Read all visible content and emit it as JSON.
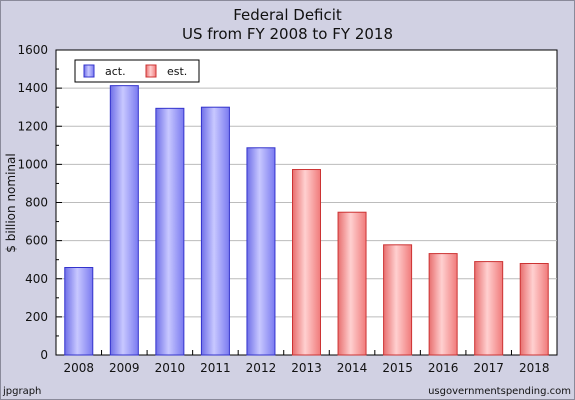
{
  "chart_data": {
    "type": "bar",
    "title": "Federal Deficit",
    "subtitle": "US from FY 2008 to FY 2018",
    "xlabel": "",
    "ylabel": "$ billion nominal",
    "ylim": [
      0,
      1600
    ],
    "yticks": [
      0,
      200,
      400,
      600,
      800,
      1000,
      1200,
      1400,
      1600
    ],
    "grid": true,
    "legend_position": "top-left",
    "categories": [
      "2008",
      "2009",
      "2010",
      "2011",
      "2012",
      "2013",
      "2014",
      "2015",
      "2016",
      "2017",
      "2018"
    ],
    "values": [
      459,
      1413,
      1294,
      1300,
      1087,
      973,
      749,
      578,
      532,
      490,
      480
    ],
    "status": [
      "act.",
      "act.",
      "act.",
      "act.",
      "act.",
      "est.",
      "est.",
      "est.",
      "est.",
      "est.",
      "est."
    ],
    "series": [
      {
        "name": "act.",
        "color": "#8888ff"
      },
      {
        "name": "est.",
        "color": "#ff8888"
      }
    ]
  },
  "footer": {
    "left": "jpgraph",
    "right": "usgovernmentspending.com"
  }
}
